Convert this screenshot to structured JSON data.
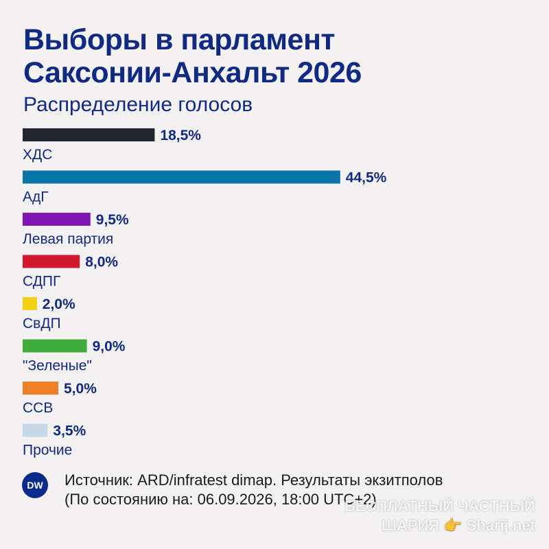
{
  "header": {
    "title_line1": "Выборы в парламент",
    "title_line2": "Саксонии-Анхальт 2026",
    "subtitle": "Распределение голосов"
  },
  "chart_data": {
    "type": "bar",
    "orientation": "horizontal",
    "unit": "%",
    "categories": [
      "ХДС",
      "АдГ",
      "Левая партия",
      "СДПГ",
      "СвДП",
      "\"Зеленые\"",
      "ССВ",
      "Прочие"
    ],
    "values": [
      18.5,
      44.5,
      9.5,
      8.0,
      2.0,
      9.0,
      5.0,
      3.5
    ],
    "value_labels": [
      "18,5%",
      "44,5%",
      "9,5%",
      "8,0%",
      "2,0%",
      "9,0%",
      "5,0%",
      "3,5%"
    ],
    "colors": [
      "#23262f",
      "#0a73a8",
      "#7f16b0",
      "#d2182e",
      "#f4d011",
      "#3fad3c",
      "#f07f28",
      "#c5d8e8"
    ],
    "xlim": [
      0,
      50
    ],
    "grid": false,
    "legend": "none"
  },
  "footer": {
    "logo": "DW",
    "source_line1": "Источник: ARD/infratest dimap. Результаты экзитполов",
    "source_line2": "(По состоянию на: 06.09.2026, 18:00 UTC+2)"
  },
  "watermark": {
    "line1": "БЕСПЛАТНЫЙ ЧАСТНЫЙ",
    "line2": "ШАРИЯ 👉 Sharij.net"
  }
}
